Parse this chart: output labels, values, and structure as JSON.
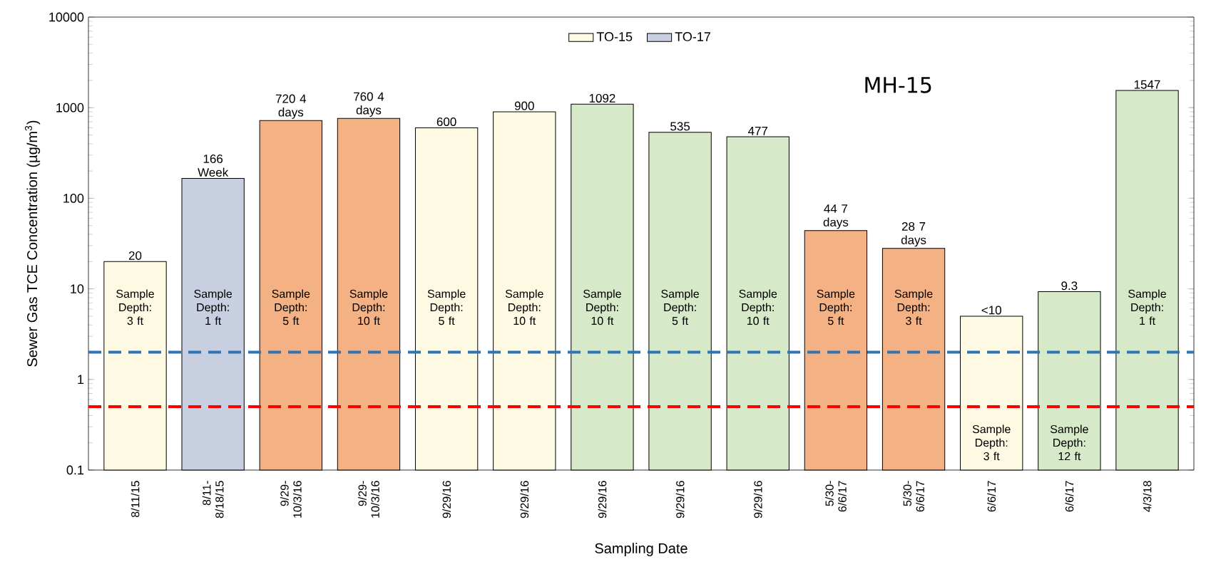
{
  "chart_data": {
    "type": "bar",
    "subtitle": "MH-15",
    "xlabel": "Sampling Date",
    "ylabel": "Sewer Gas TCE Concentration (µg/m$^{3}$)",
    "categories": [
      "8/11/15",
      "8/11- 8/18/15",
      "9/29- 10/3/16",
      "9/29- 10/3/16",
      "9/29/16",
      "9/29/16",
      "9/29/16",
      "9/29/16",
      "9/29/16",
      "5/30- 6/6/17",
      "5/30- 6/6/17",
      "6/6/17",
      "6/6/17",
      "4/3/18"
    ],
    "series": [
      {
        "name": "TO-15",
        "color": "#fdf9e3",
        "values": [
          20,
          null,
          null,
          null,
          600,
          900,
          null,
          null,
          null,
          null,
          null,
          5,
          null,
          null
        ],
        "value_labels": [
          "20",
          null,
          null,
          null,
          "600",
          "900",
          null,
          null,
          null,
          null,
          null,
          "<10",
          null,
          null
        ]
      },
      {
        "name": "TO-17",
        "color": "#c8cfe0",
        "values": [
          null,
          166,
          null,
          null,
          null,
          null,
          null,
          null,
          null,
          null,
          null,
          null,
          null,
          null
        ],
        "value_labels": [
          null,
          "166 Week",
          null,
          null,
          null,
          null,
          null,
          null,
          null,
          null,
          null,
          null,
          null,
          null
        ]
      },
      {
        "color": "#d6e9c8",
        "values": [
          null,
          null,
          null,
          null,
          null,
          null,
          1092,
          535,
          477,
          null,
          null,
          null,
          9.3,
          1547
        ],
        "value_labels": [
          null,
          null,
          null,
          null,
          null,
          null,
          "1092",
          "535",
          "477",
          null,
          null,
          null,
          "9.3",
          "1547"
        ]
      },
      {
        "color": "#f4b183",
        "values": [
          null,
          null,
          720,
          760,
          null,
          null,
          null,
          null,
          null,
          44,
          28,
          null,
          null,
          null
        ],
        "value_labels": [
          null,
          null,
          "720 4 days",
          "760 4 days",
          null,
          null,
          null,
          null,
          null,
          "44 7 days",
          "28 7 days",
          null,
          null,
          null
        ]
      }
    ],
    "log": "y",
    "ylim": [
      0.1,
      10000
    ],
    "yticks": [
      0.1,
      1,
      10,
      100,
      1000,
      10000
    ],
    "legend": "top",
    "ref_lines": [
      {
        "axis": "y",
        "value": 2,
        "color": "#2e75b6",
        "line_style": "dashed"
      },
      {
        "axis": "y",
        "value": 0.5,
        "color": "#ff0000",
        "line_style": "dashed"
      }
    ],
    "annotations": [
      "Sample Depth: 3 ft",
      "Sample Depth: 1 ft",
      "Sample Depth: 5 ft",
      "Sample Depth: 10 ft",
      "Sample Depth: 5 ft",
      "Sample Depth: 10 ft",
      "Sample Depth: 10 ft",
      "Sample Depth: 5 ft",
      "Sample Depth: 10 ft",
      "Sample Depth: 5 ft",
      "Sample Depth: 3 ft",
      "Sample Depth: 3 ft",
      "Sample Depth: 12 ft",
      "Sample Depth: 1 ft"
    ]
  }
}
